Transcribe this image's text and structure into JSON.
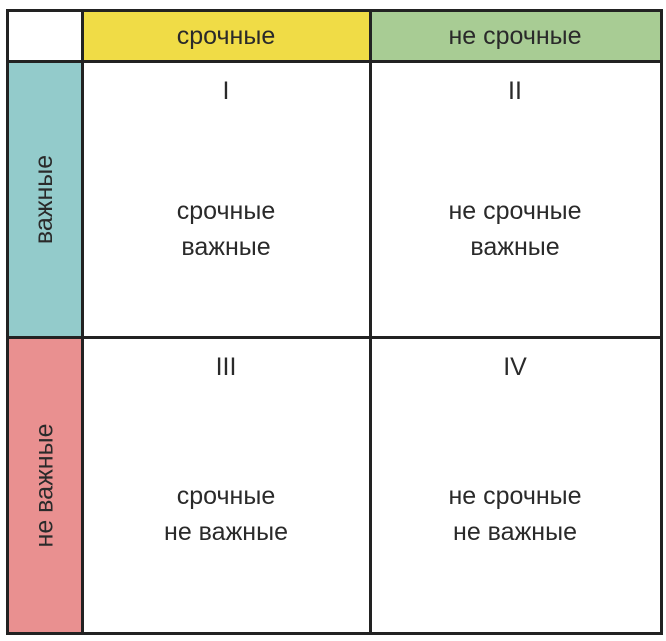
{
  "colors": {
    "urgent": "#f0dc46",
    "not_urgent": "#a8cc94",
    "important": "#93cbcb",
    "not_important": "#e99090",
    "grid": "#222222"
  },
  "columns": [
    {
      "label": "срочные"
    },
    {
      "label": "не срочные"
    }
  ],
  "rows": [
    {
      "label": "важные"
    },
    {
      "label": "не важные"
    }
  ],
  "quadrants": [
    {
      "number": "I",
      "line1": "срочные",
      "line2": "важные"
    },
    {
      "number": "II",
      "line1": "не срочные",
      "line2": "важные"
    },
    {
      "number": "III",
      "line1": "срочные",
      "line2": "не важные"
    },
    {
      "number": "IV",
      "line1": "не срочные",
      "line2": "не важные"
    }
  ]
}
